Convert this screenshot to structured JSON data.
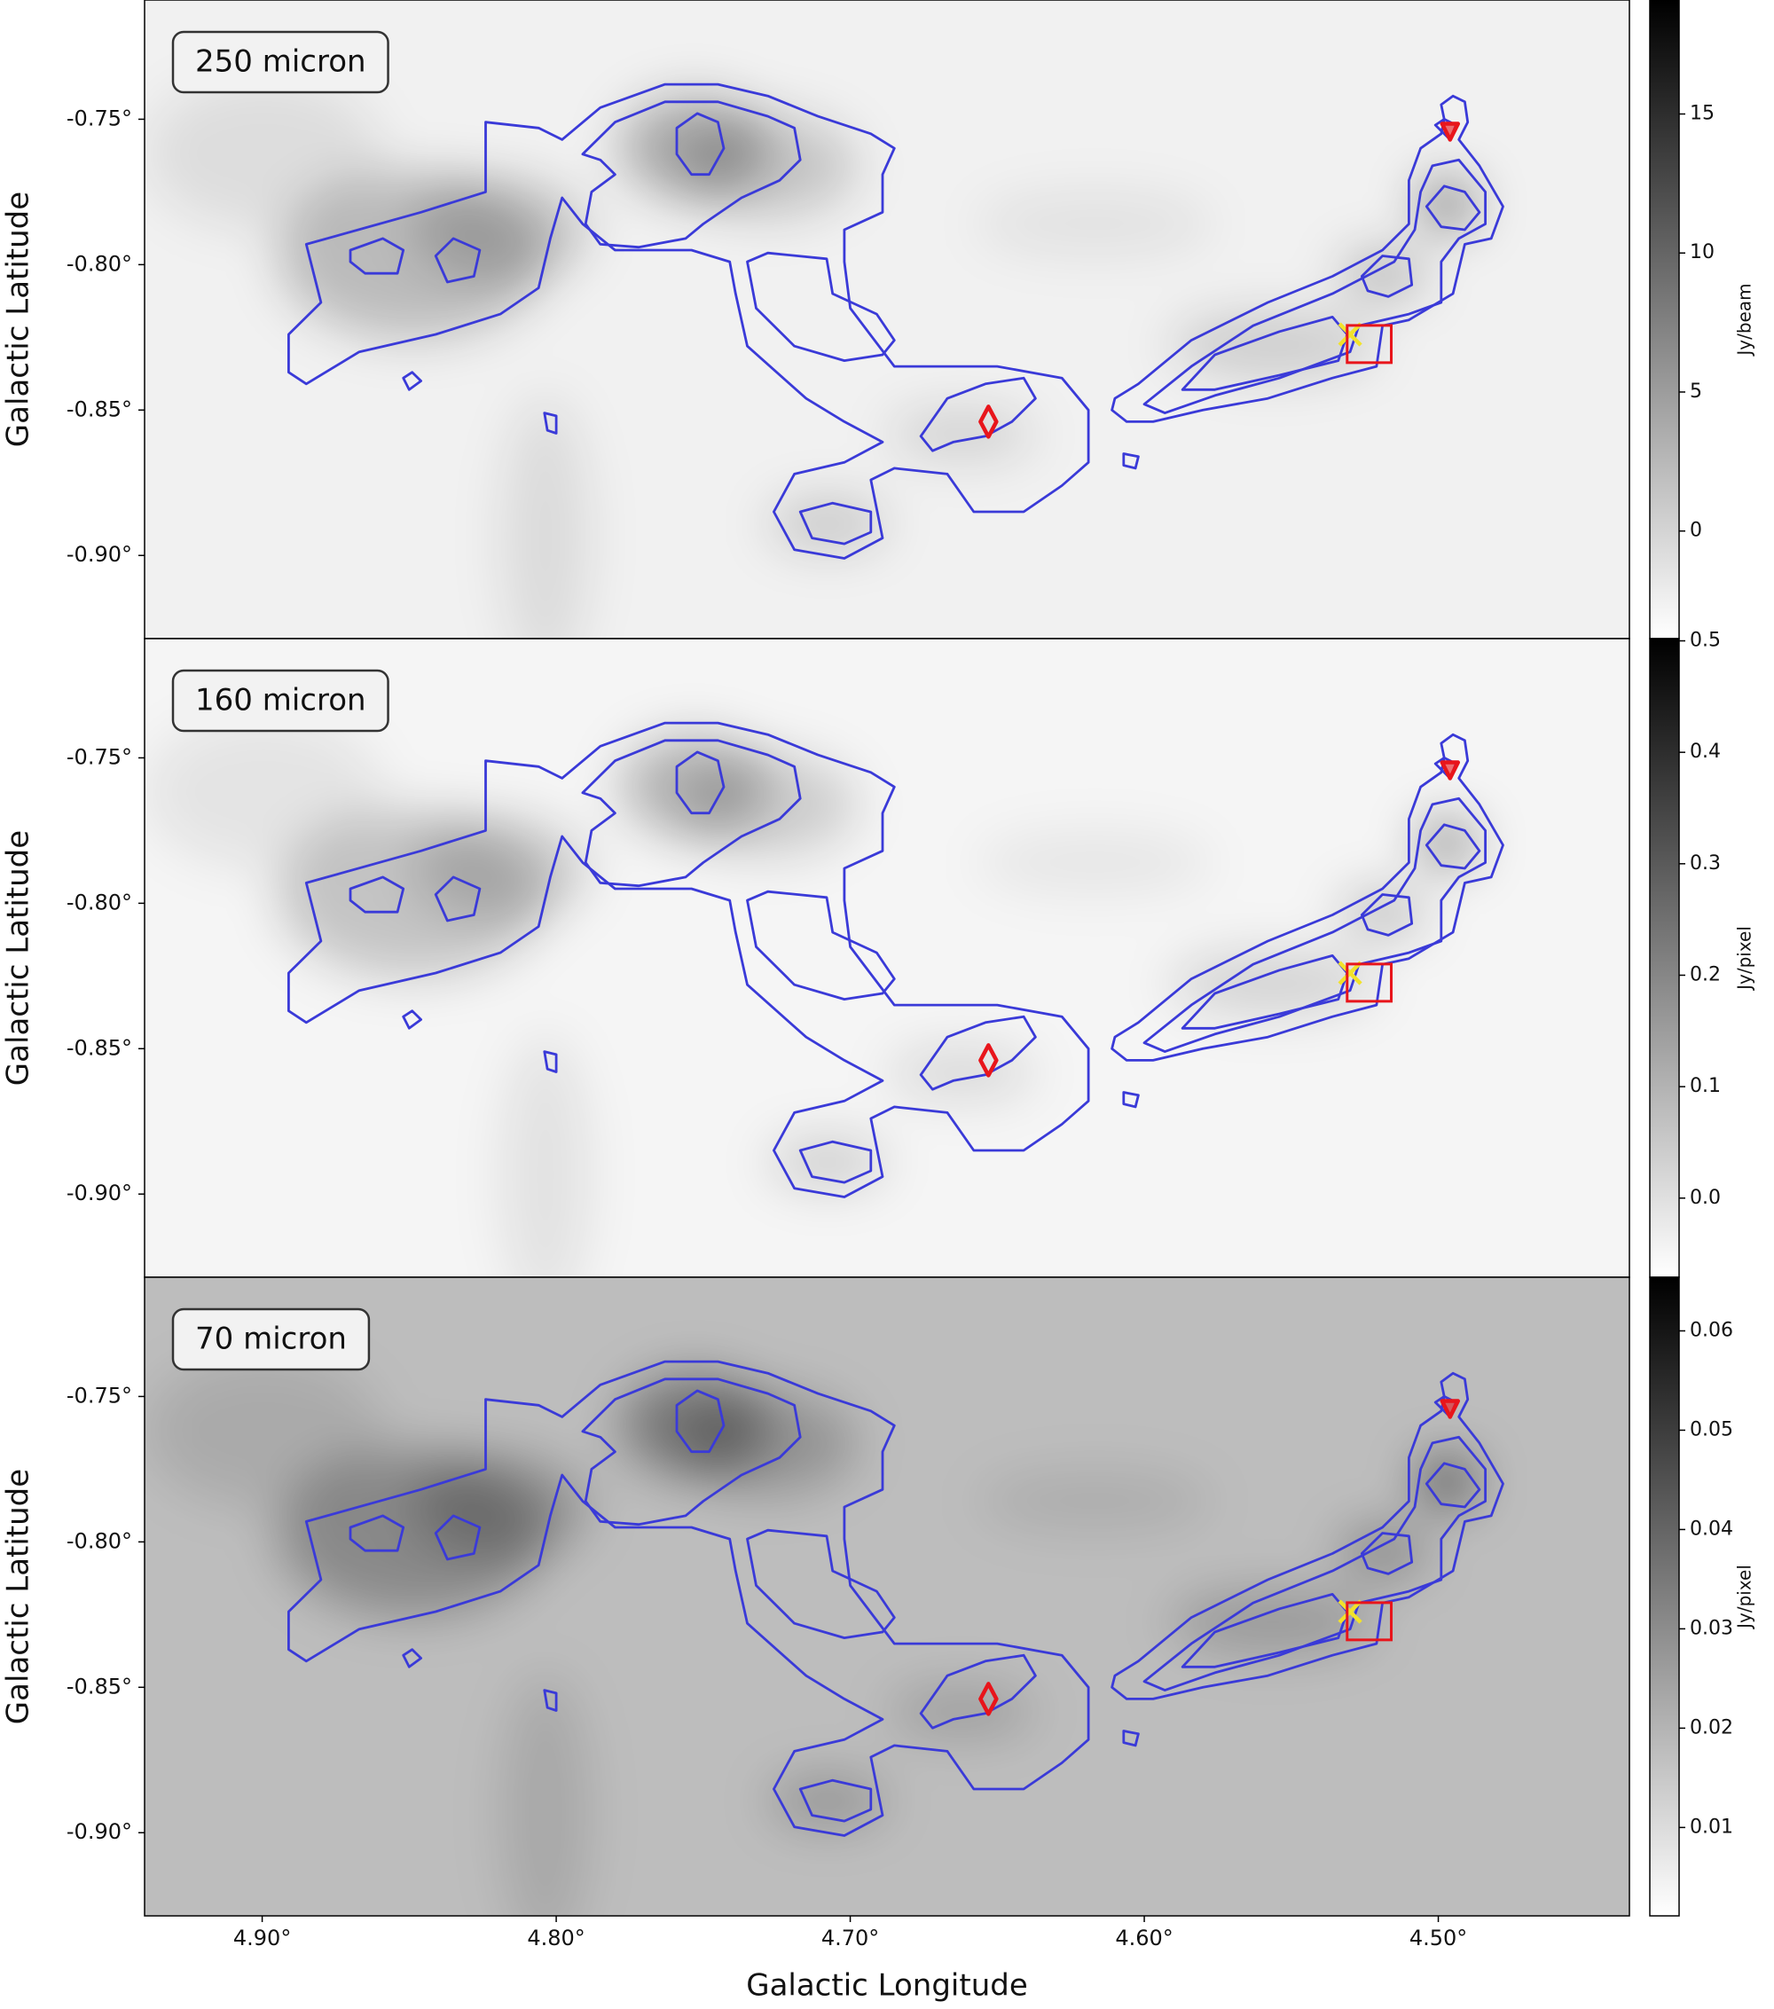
{
  "chart_data": [
    {
      "type": "image",
      "title": "250 micron",
      "ylabel": "Galactic Latitude",
      "colorbar_label": "Jy/beam",
      "xlim": [
        4.94,
        4.435
      ],
      "ylim": [
        -0.9286,
        -0.709
      ],
      "yticks": [
        {
          "value": -0.75,
          "label": "-0.75°"
        },
        {
          "value": -0.8,
          "label": "-0.80°"
        },
        {
          "value": -0.85,
          "label": "-0.85°"
        },
        {
          "value": -0.9,
          "label": "-0.90°"
        }
      ],
      "clim": [
        -3.87,
        19.1
      ],
      "cticks": [
        0,
        5,
        10,
        15
      ]
    },
    {
      "type": "image",
      "title": "160 micron",
      "ylabel": "Galactic Latitude",
      "colorbar_label": "Jy/pixel",
      "xlim": [
        4.94,
        4.435
      ],
      "ylim": [
        -0.9286,
        -0.709
      ],
      "yticks": [
        {
          "value": -0.75,
          "label": "-0.75°"
        },
        {
          "value": -0.8,
          "label": "-0.80°"
        },
        {
          "value": -0.85,
          "label": "-0.85°"
        },
        {
          "value": -0.9,
          "label": "-0.90°"
        }
      ],
      "clim": [
        -0.071,
        0.502
      ],
      "cticks": [
        {
          "value": 0,
          "label": "0.0"
        },
        0.1,
        0.2,
        0.3,
        0.4,
        0.5
      ]
    },
    {
      "type": "image",
      "title": "70 micron",
      "ylabel": "Galactic Latitude",
      "xlabel": "Galactic Longitude",
      "colorbar_label": "Jy/pixel",
      "xlim": [
        4.94,
        4.435
      ],
      "ylim": [
        -0.9286,
        -0.709
      ],
      "xticks": [
        {
          "value": 4.9,
          "label": "4.90°"
        },
        {
          "value": 4.8,
          "label": "4.80°"
        },
        {
          "value": 4.7,
          "label": "4.70°"
        },
        {
          "value": 4.6,
          "label": "4.60°"
        },
        {
          "value": 4.5,
          "label": "4.50°"
        }
      ],
      "yticks": [
        {
          "value": -0.75,
          "label": "-0.75°"
        },
        {
          "value": -0.8,
          "label": "-0.80°"
        },
        {
          "value": -0.85,
          "label": "-0.85°"
        },
        {
          "value": -0.9,
          "label": "-0.90°"
        }
      ],
      "clim": [
        0.0011,
        0.0654
      ],
      "cticks": [
        0.01,
        0.02,
        0.03,
        0.04,
        0.05,
        0.06
      ]
    }
  ],
  "overlay": {
    "contour_color": "#3a3ad8",
    "contours": [
      {
        "x": [
          4.885,
          4.846,
          4.824,
          4.824,
          4.806,
          4.798,
          4.785,
          4.763,
          4.745,
          4.728,
          4.711,
          4.693,
          4.685,
          4.689,
          4.689,
          4.702,
          4.702,
          4.7,
          4.685,
          4.65,
          4.628,
          4.619,
          4.619,
          4.628,
          4.641,
          4.658,
          4.667,
          4.685,
          4.693,
          4.689,
          4.702,
          4.719,
          4.726,
          4.719,
          4.702,
          4.689,
          4.702,
          4.715,
          4.735,
          4.739,
          4.741,
          4.754,
          4.78,
          4.791,
          4.798,
          4.802,
          4.806,
          4.819,
          4.841,
          4.867,
          4.885,
          4.891,
          4.891,
          4.88
        ],
        "y": [
          -0.793,
          -0.782,
          -0.775,
          -0.751,
          -0.753,
          -0.757,
          -0.746,
          -0.738,
          -0.738,
          -0.742,
          -0.749,
          -0.755,
          -0.76,
          -0.769,
          -0.782,
          -0.788,
          -0.799,
          -0.815,
          -0.835,
          -0.835,
          -0.839,
          -0.85,
          -0.868,
          -0.876,
          -0.885,
          -0.885,
          -0.872,
          -0.87,
          -0.874,
          -0.894,
          -0.901,
          -0.898,
          -0.885,
          -0.872,
          -0.868,
          -0.861,
          -0.854,
          -0.846,
          -0.828,
          -0.81,
          -0.799,
          -0.795,
          -0.795,
          -0.786,
          -0.777,
          -0.791,
          -0.808,
          -0.817,
          -0.824,
          -0.83,
          -0.841,
          -0.837,
          -0.824,
          -0.813
        ]
      },
      {
        "x": [
          4.87,
          4.859,
          4.852,
          4.854,
          4.865,
          4.87
        ],
        "y": [
          -0.795,
          -0.791,
          -0.795,
          -0.803,
          -0.803,
          -0.799
        ]
      },
      {
        "x": [
          4.841,
          4.835,
          4.826,
          4.828,
          4.837
        ],
        "y": [
          -0.797,
          -0.791,
          -0.795,
          -0.804,
          -0.806
        ]
      },
      {
        "x": [
          4.791,
          4.78,
          4.763,
          4.745,
          4.728,
          4.719,
          4.717,
          4.724,
          4.737,
          4.75,
          4.756,
          4.772,
          4.785,
          4.79,
          4.788,
          4.78,
          4.785
        ],
        "y": [
          -0.762,
          -0.751,
          -0.744,
          -0.744,
          -0.749,
          -0.753,
          -0.764,
          -0.771,
          -0.777,
          -0.786,
          -0.791,
          -0.794,
          -0.793,
          -0.786,
          -0.775,
          -0.769,
          -0.764
        ]
      },
      {
        "x": [
          4.759,
          4.752,
          4.745,
          4.743,
          4.748,
          4.754,
          4.759
        ],
        "y": [
          -0.753,
          -0.748,
          -0.751,
          -0.76,
          -0.769,
          -0.769,
          -0.762
        ]
      },
      {
        "x": [
          4.735,
          4.728,
          4.708,
          4.706,
          4.691,
          4.685,
          4.689,
          4.702,
          4.719,
          4.732
        ],
        "y": [
          -0.799,
          -0.796,
          -0.798,
          -0.81,
          -0.817,
          -0.826,
          -0.831,
          -0.833,
          -0.828,
          -0.815
        ]
      },
      {
        "x": [
          4.676,
          4.667,
          4.654,
          4.641,
          4.637,
          4.645,
          4.654,
          4.665,
          4.672
        ],
        "y": [
          -0.859,
          -0.846,
          -0.841,
          -0.839,
          -0.846,
          -0.854,
          -0.859,
          -0.861,
          -0.864
        ]
      },
      {
        "x": [
          4.717,
          4.706,
          4.693,
          4.693,
          4.702,
          4.713
        ],
        "y": [
          -0.885,
          -0.882,
          -0.885,
          -0.892,
          -0.896,
          -0.894
        ]
      },
      {
        "x": [
          4.61,
          4.602,
          4.584,
          4.558,
          4.536,
          4.519,
          4.51,
          4.51,
          4.506,
          4.499,
          4.498,
          4.499,
          4.495,
          4.491,
          4.49,
          4.493,
          4.486,
          4.478,
          4.482,
          4.491,
          4.495,
          4.51,
          4.519,
          4.521,
          4.536,
          4.558,
          4.58,
          4.597,
          4.606,
          4.611
        ],
        "y": [
          -0.846,
          -0.841,
          -0.826,
          -0.813,
          -0.804,
          -0.795,
          -0.786,
          -0.771,
          -0.76,
          -0.755,
          -0.75,
          -0.745,
          -0.742,
          -0.744,
          -0.751,
          -0.757,
          -0.766,
          -0.78,
          -0.791,
          -0.793,
          -0.81,
          -0.819,
          -0.821,
          -0.835,
          -0.839,
          -0.846,
          -0.85,
          -0.854,
          -0.854,
          -0.85
        ]
      },
      {
        "x": [
          4.6,
          4.584,
          4.563,
          4.536,
          4.515,
          4.508,
          4.506,
          4.502,
          4.493,
          4.484,
          4.484,
          4.493,
          4.499,
          4.499,
          4.51,
          4.527,
          4.53,
          4.554,
          4.576,
          4.593
        ],
        "y": [
          -0.848,
          -0.835,
          -0.821,
          -0.81,
          -0.799,
          -0.788,
          -0.775,
          -0.766,
          -0.764,
          -0.775,
          -0.786,
          -0.791,
          -0.799,
          -0.813,
          -0.817,
          -0.821,
          -0.83,
          -0.839,
          -0.845,
          -0.851
        ]
      },
      {
        "x": [
          4.587,
          4.576,
          4.554,
          4.536,
          4.531,
          4.534,
          4.554,
          4.576
        ],
        "y": [
          -0.843,
          -0.831,
          -0.823,
          -0.818,
          -0.824,
          -0.833,
          -0.838,
          -0.843
        ]
      },
      {
        "x": [
          4.526,
          4.519,
          4.51,
          4.509,
          4.517,
          4.524
        ],
        "y": [
          -0.804,
          -0.797,
          -0.798,
          -0.807,
          -0.811,
          -0.809
        ]
      },
      {
        "x": [
          4.504,
          4.498,
          4.491,
          4.486,
          4.491,
          4.499
        ],
        "y": [
          -0.78,
          -0.773,
          -0.775,
          -0.782,
          -0.788,
          -0.787
        ]
      },
      {
        "x": [
          4.501,
          4.498,
          4.494,
          4.496
        ],
        "y": [
          -0.752,
          -0.75,
          -0.752,
          -0.757
        ]
      },
      {
        "x": [
          4.852,
          4.849,
          4.846,
          4.85
        ],
        "y": [
          -0.839,
          -0.837,
          -0.84,
          -0.843
        ]
      },
      {
        "x": [
          4.804,
          4.8,
          4.8,
          4.803
        ],
        "y": [
          -0.851,
          -0.852,
          -0.858,
          -0.857
        ]
      },
      {
        "x": [
          4.607,
          4.602,
          4.603,
          4.607
        ],
        "y": [
          -0.865,
          -0.866,
          -0.87,
          -0.869
        ]
      }
    ],
    "markers": [
      {
        "shape": "diamond",
        "color": "#e8151b",
        "x": 4.653,
        "y": -0.854
      },
      {
        "shape": "triangle",
        "color": "#e8151b",
        "x": 4.496,
        "y": -0.754
      },
      {
        "shape": "cross",
        "color": "#f2e22a",
        "x": 4.53,
        "y": -0.824
      },
      {
        "shape": "box",
        "color": "#e8151b",
        "x": [
          4.531,
          4.516
        ],
        "y": [
          -0.8337,
          -0.8209
        ]
      }
    ]
  }
}
